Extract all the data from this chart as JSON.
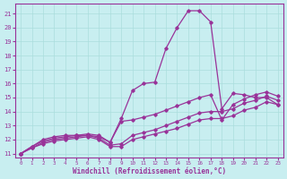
{
  "bg_color": "#c8eef0",
  "line_color": "#993399",
  "grid_color": "#aadddd",
  "xlabel": "Windchill (Refroidissement éolien,°C)",
  "yticks": [
    11,
    12,
    13,
    14,
    15,
    16,
    17,
    18,
    19,
    20,
    21
  ],
  "xticks": [
    0,
    1,
    2,
    3,
    4,
    5,
    6,
    7,
    8,
    9,
    10,
    11,
    12,
    13,
    14,
    15,
    16,
    17,
    18,
    19,
    20,
    21,
    22,
    23
  ],
  "xlim": [
    -0.5,
    23.5
  ],
  "ylim": [
    10.7,
    21.7
  ],
  "series": [
    [
      11.0,
      11.4,
      11.7,
      11.9,
      12.0,
      12.1,
      12.2,
      12.0,
      11.5,
      11.5,
      12.0,
      12.2,
      12.4,
      12.6,
      12.8,
      13.1,
      13.4,
      13.5,
      13.5,
      13.7,
      14.1,
      14.3,
      14.7,
      14.5
    ],
    [
      11.0,
      11.4,
      11.8,
      12.0,
      12.1,
      12.2,
      12.3,
      12.1,
      11.6,
      11.7,
      12.3,
      12.5,
      12.7,
      13.0,
      13.3,
      13.6,
      13.9,
      14.0,
      14.0,
      14.2,
      14.6,
      14.8,
      15.1,
      14.8
    ],
    [
      11.0,
      11.5,
      11.9,
      12.1,
      12.2,
      12.3,
      12.3,
      12.2,
      11.8,
      13.3,
      13.4,
      13.6,
      13.8,
      14.1,
      14.4,
      14.7,
      15.0,
      15.2,
      13.4,
      14.5,
      14.9,
      15.2,
      15.4,
      15.1
    ],
    [
      11.0,
      11.5,
      12.0,
      12.2,
      12.3,
      12.3,
      12.4,
      12.3,
      11.8,
      13.5,
      15.5,
      16.0,
      16.1,
      18.5,
      20.0,
      21.2,
      21.2,
      20.4,
      14.2,
      15.3,
      15.2,
      15.0,
      15.0,
      14.5
    ]
  ]
}
